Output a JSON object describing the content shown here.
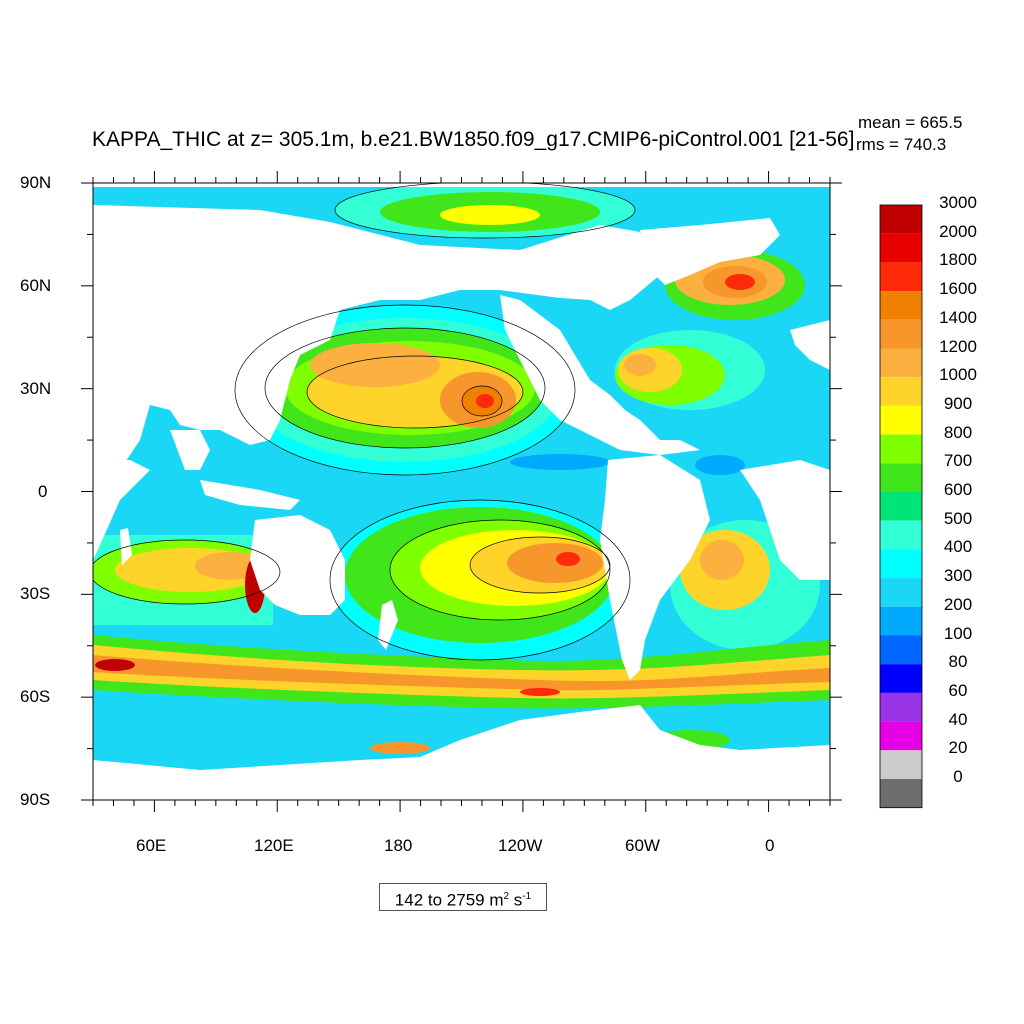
{
  "title": "KAPPA_THIC at z= 305.1m, b.e21.BW1850.f09_g17.CMIP6-piControl.001 [21-56]",
  "stats": {
    "mean": "mean = 665.5",
    "rms": "rms = 740.3"
  },
  "range": {
    "text": "142 to 2759 m",
    "unit_exp1": "2",
    "unit_mid": " s",
    "unit_exp2": "-1"
  },
  "lat_labels": [
    "90N",
    "60N",
    "30N",
    "0",
    "30S",
    "60S",
    "90S"
  ],
  "lon_labels": [
    "60E",
    "120E",
    "180",
    "120W",
    "60W",
    "0"
  ],
  "colorbar": {
    "levels": [
      "3000",
      "2000",
      "1800",
      "1600",
      "1400",
      "1200",
      "1000",
      "900",
      "800",
      "700",
      "600",
      "500",
      "400",
      "300",
      "200",
      "100",
      "80",
      "60",
      "40",
      "20",
      "0"
    ],
    "colors": [
      "#c00000",
      "#e60000",
      "#ff2a0a",
      "#f08000",
      "#f7962a",
      "#fbb040",
      "#ffd42a",
      "#ffff00",
      "#7fff00",
      "#40e61a",
      "#00e676",
      "#33ffd6",
      "#00ffff",
      "#1ad7f5",
      "#00aaff",
      "#0066ff",
      "#0000ff",
      "#9933e6",
      "#e600e6",
      "#cccccc",
      "#6e6e6e"
    ]
  },
  "colors": {
    "land": "#ffffff",
    "ocean_default": "#1ad7f5"
  }
}
